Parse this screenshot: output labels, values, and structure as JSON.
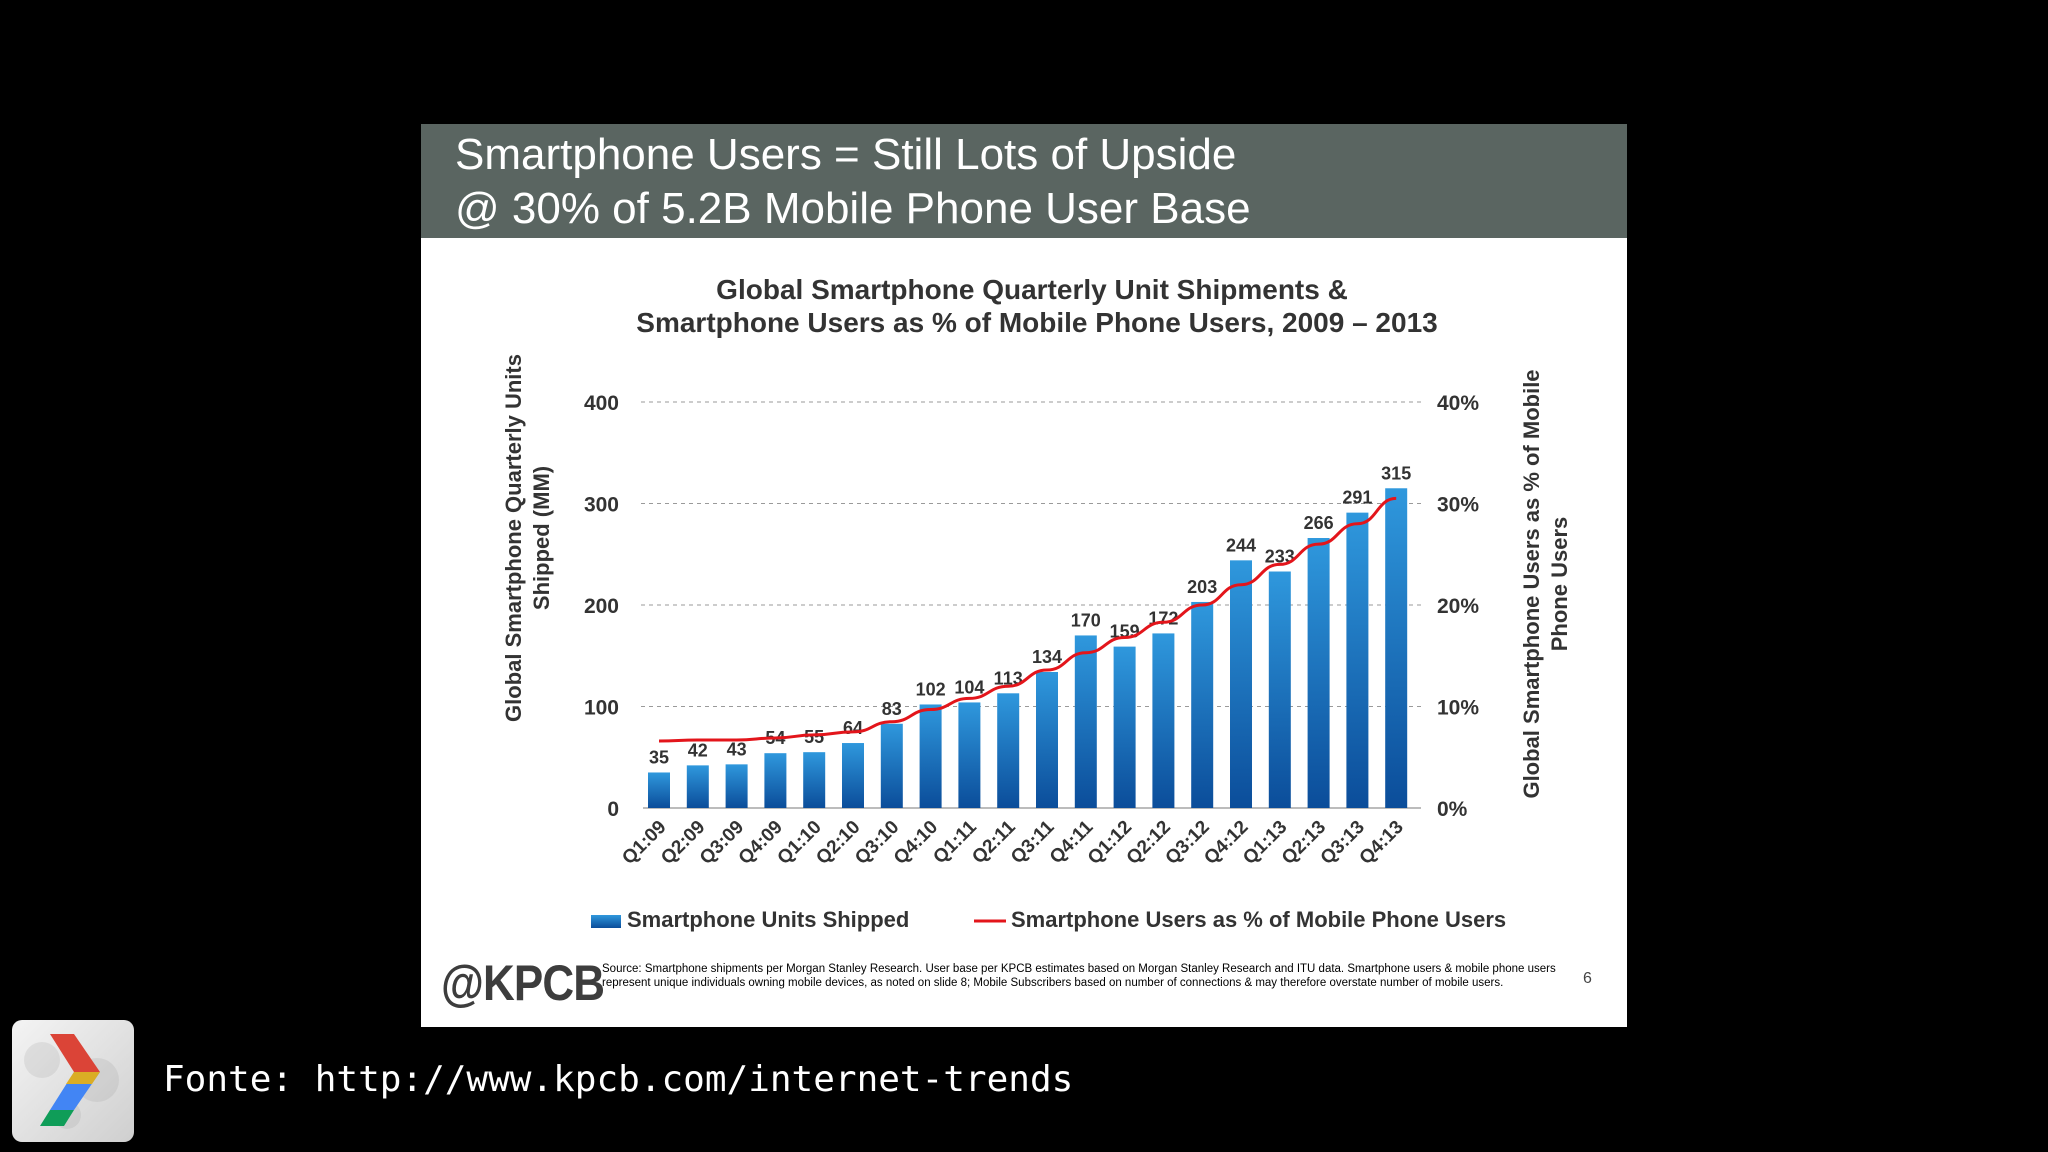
{
  "slide": {
    "title_line1": "Smartphone Users = Still Lots of Upside",
    "title_line2": "@ 30% of 5.2B Mobile Phone User Base",
    "logo": "@KPCB",
    "source": "Source: Smartphone shipments per Morgan Stanley Research. User base per KPCB estimates based on Morgan Stanley Research and ITU data. Smartphone users & mobile phone users represent unique individuals owning mobile devices, as noted on slide 8; Mobile Subscribers based on number of connections & may therefore overstate number of mobile users.",
    "page_number": "6"
  },
  "caption": "Fonte: http://www.kpcb.com/internet-trends",
  "app_icon": "google-developers-chevron-icon",
  "colors": {
    "header_bg": "#5a6561",
    "bar_top": "#2f98dd",
    "bar_bottom": "#0b4d9a",
    "line": "#e3151b",
    "background": "#000000"
  },
  "chart_data": {
    "type": "bar",
    "title_line1": "Global Smartphone Quarterly Unit Shipments &",
    "title_line2": "Smartphone Users as % of Mobile Phone Users, 2009 – 2013",
    "ylabel_line1": "Global Smartphone Quarterly Units",
    "ylabel_line2": "Shipped (MM)",
    "y2label_line1": "Global Smartphone Users as % of Mobile",
    "y2label_line2": "Phone Users",
    "ylim": [
      0,
      400
    ],
    "yticks": [
      "0",
      "100",
      "200",
      "300",
      "400"
    ],
    "y2lim": [
      0,
      40
    ],
    "y2ticks": [
      "0%",
      "10%",
      "20%",
      "30%",
      "40%"
    ],
    "grid": true,
    "legend_position": "bottom",
    "categories": [
      "Q1:09",
      "Q2:09",
      "Q3:09",
      "Q4:09",
      "Q1:10",
      "Q2:10",
      "Q3:10",
      "Q4:10",
      "Q1:11",
      "Q2:11",
      "Q3:11",
      "Q4:11",
      "Q1:12",
      "Q2:12",
      "Q3:12",
      "Q4:12",
      "Q1:13",
      "Q2:13",
      "Q3:13",
      "Q4:13"
    ],
    "series": [
      {
        "name": "Smartphone Units Shipped",
        "type": "bar",
        "axis": "left",
        "values": [
          35,
          42,
          43,
          54,
          55,
          64,
          83,
          102,
          104,
          113,
          134,
          170,
          159,
          172,
          203,
          244,
          233,
          266,
          291,
          315
        ]
      },
      {
        "name": "Smartphone Users as % of Mobile Phone Users",
        "type": "line",
        "axis": "right",
        "values": [
          6.6,
          6.7,
          6.7,
          6.9,
          7.2,
          7.5,
          8.5,
          9.7,
          10.8,
          12.0,
          13.6,
          15.3,
          16.8,
          18.3,
          20.0,
          22.0,
          24.0,
          26.0,
          28.0,
          30.5
        ]
      }
    ]
  }
}
